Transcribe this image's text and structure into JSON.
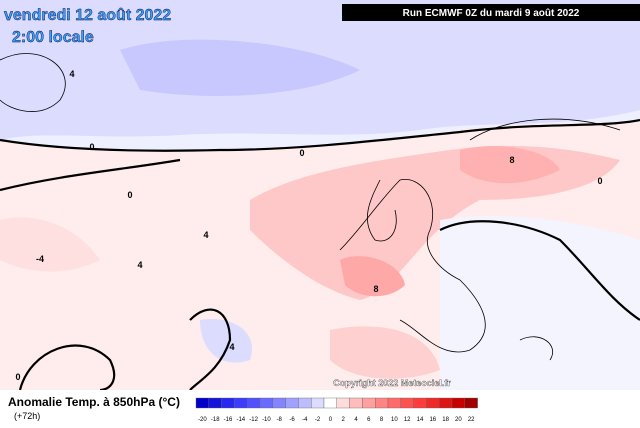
{
  "header": {
    "date": "vendredi 12 août 2022",
    "time": "2:00 locale",
    "run": "Run ECMWF 0Z du mardi 9 août 2022"
  },
  "footer": {
    "title": "Anomalie Temp. à 850hPa (°C)",
    "lead": "(+72h)",
    "copyright": "Copyright 2022 Meteociel.fr"
  },
  "colorbar": {
    "labels": [
      -20,
      -18,
      -16,
      -14,
      -12,
      -10,
      -8,
      -6,
      -4,
      -2,
      0,
      2,
      4,
      6,
      8,
      10,
      12,
      14,
      16,
      18,
      20,
      22
    ],
    "colors": [
      "#0000c8",
      "#1414dc",
      "#2828f0",
      "#3c3cff",
      "#5050ff",
      "#6a6aff",
      "#8484ff",
      "#a0a0ff",
      "#bcbcff",
      "#dcdcff",
      "#ffffff",
      "#ffdcdc",
      "#ffbcbc",
      "#ffa0a0",
      "#ff8484",
      "#ff6a6a",
      "#ff5050",
      "#ff3c3c",
      "#f02828",
      "#dc1414",
      "#c80000",
      "#a00000"
    ]
  },
  "contour_labels": [
    "0",
    "0",
    "0",
    "0",
    "4",
    "4",
    "4",
    "8",
    "8",
    "-4",
    "0",
    "4"
  ]
}
